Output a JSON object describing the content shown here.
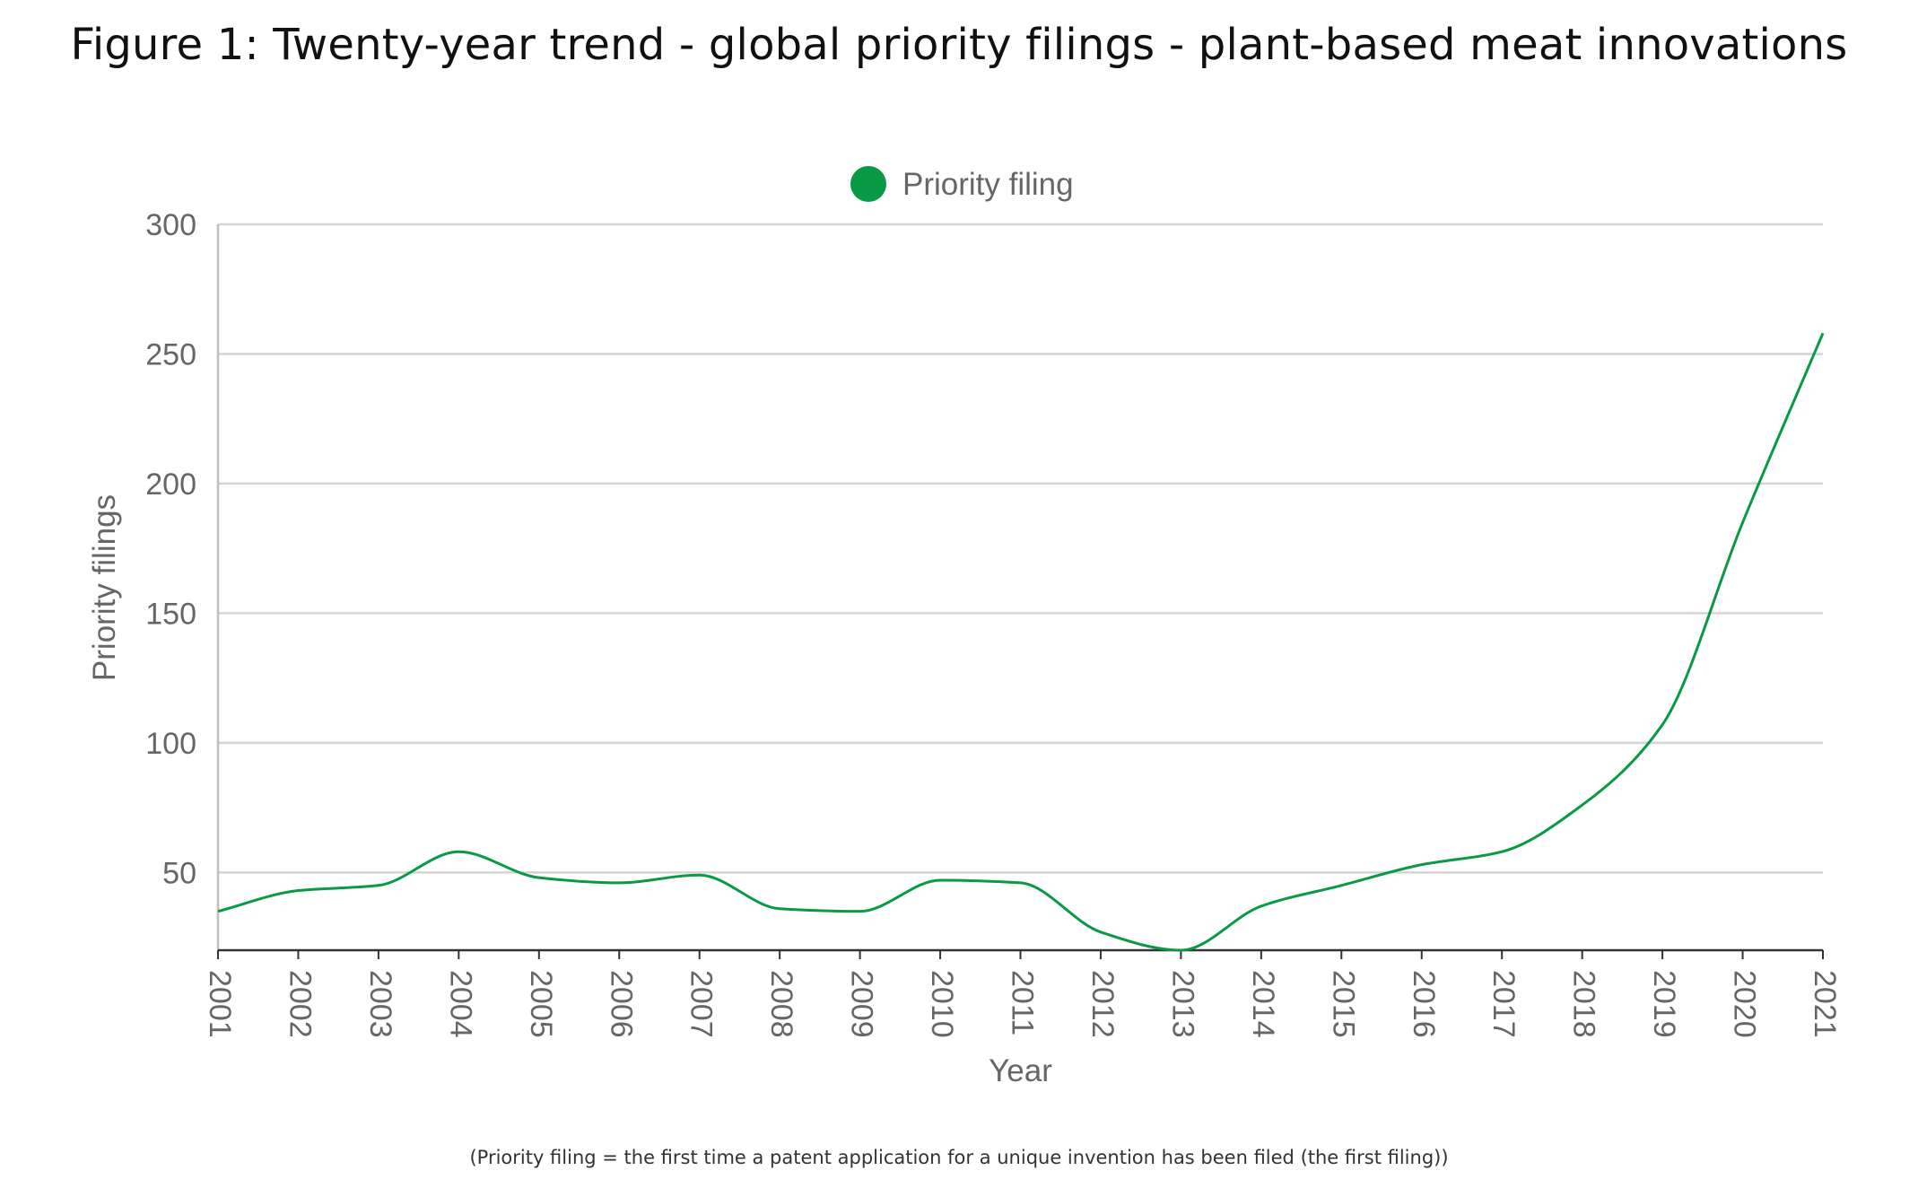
{
  "figure": {
    "title": "Figure 1: Twenty-year trend - global priority filings - plant-based meat innovations",
    "footnote": "(Priority filing = the first time a patent application for a unique invention has been filed (the first filing))"
  },
  "chart_data": {
    "type": "line",
    "title": "Figure 1: Twenty-year trend - global priority filings - plant-based meat innovations",
    "xlabel": "Year",
    "ylabel": "Priority filings",
    "x": [
      "2001",
      "2002",
      "2003",
      "2004",
      "2005",
      "2006",
      "2007",
      "2008",
      "2009",
      "2010",
      "2011",
      "2012",
      "2013",
      "2014",
      "2015",
      "2016",
      "2017",
      "2018",
      "2019",
      "2020",
      "2021"
    ],
    "series": [
      {
        "name": "Priority filing",
        "color": "#0a9a45",
        "values": [
          35,
          43,
          45,
          58,
          48,
          46,
          49,
          36,
          35,
          47,
          46,
          27,
          20,
          37,
          45,
          53,
          58,
          76,
          107,
          185,
          258
        ]
      }
    ],
    "ylim": [
      20,
      300
    ],
    "yticks": [
      50,
      100,
      150,
      200,
      250,
      300
    ],
    "grid": true,
    "legend": "top-center",
    "x_tick_rotation": "vertical"
  }
}
